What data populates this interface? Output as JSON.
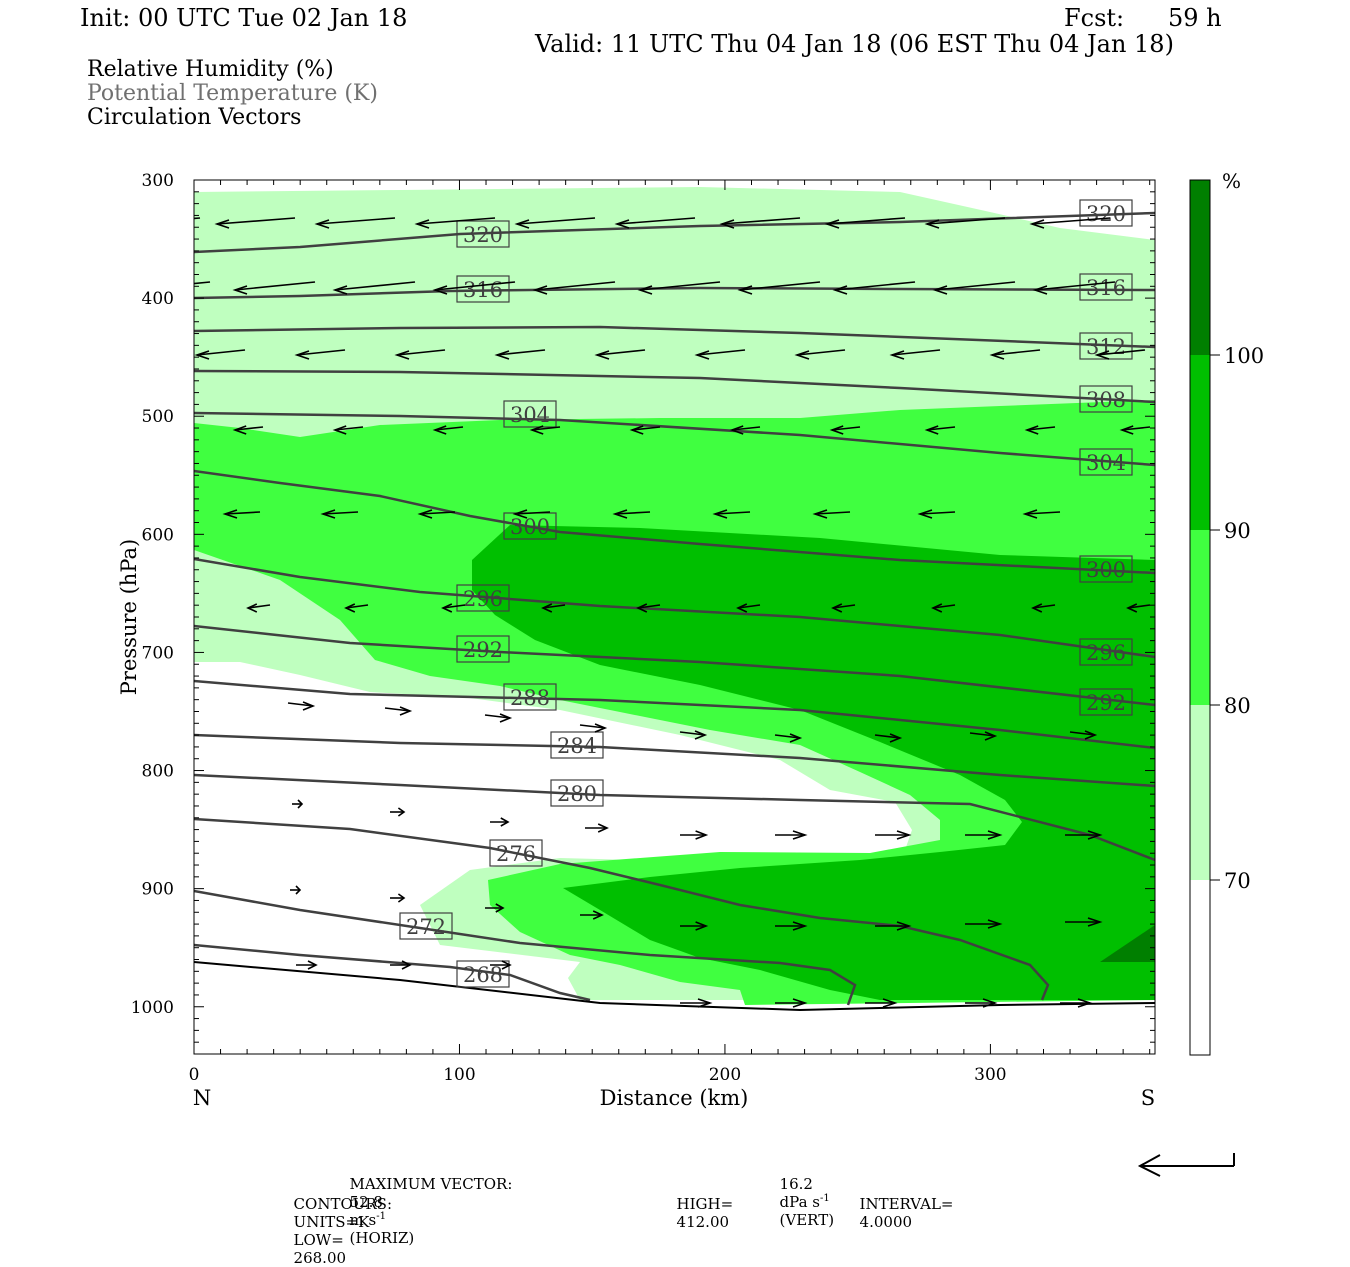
{
  "header": {
    "init": "Init: 00 UTC Tue 02 Jan 18",
    "fcst_label": "Fcst:",
    "fcst_value": "59 h",
    "valid": "Valid: 11 UTC Thu 04 Jan 18 (06 EST Thu 04 Jan 18)"
  },
  "fields": {
    "rh": "Relative Humidity (%)",
    "theta": "Potential Temperature (K)",
    "vectors": "Circulation Vectors"
  },
  "colors": {
    "rh_70_80": "#bfffbf",
    "rh_80_90": "#40ff40",
    "rh_90_100": "#00bf00",
    "rh_100_plus": "#007f00",
    "contour": "#404040"
  },
  "chart_data": {
    "type": "cross-section",
    "xlabel": "Distance (km)",
    "ylabel": "Pressure (hPa)",
    "x_ticks": [
      "0",
      "100",
      "200",
      "300"
    ],
    "y_ticks": [
      "300",
      "400",
      "500",
      "600",
      "700",
      "800",
      "900",
      "1000"
    ],
    "xlim": [
      0,
      362
    ],
    "ylim": [
      1040,
      300
    ],
    "left_end": "N",
    "right_end": "S",
    "colorbar": {
      "unit": "%",
      "levels": [
        "70",
        "80",
        "90",
        "100"
      ]
    },
    "theta_contours": [
      {
        "label": "320",
        "p_left": 340,
        "p_right": 328
      },
      {
        "label": "316",
        "p_left": 399,
        "p_right": 392
      },
      {
        "label": "312",
        "p_left": 430,
        "p_right": 440
      },
      {
        "label": "308",
        "p_left": 461,
        "p_right": 490
      },
      {
        "label": "304",
        "p_left": 497,
        "p_right": 543
      },
      {
        "label": "300",
        "p_left": 547,
        "p_right": 633
      },
      {
        "label": "296",
        "p_left": 620,
        "p_right": 708
      },
      {
        "label": "292",
        "p_left": 677,
        "p_right": 750
      },
      {
        "label": "288",
        "p_left": 723,
        "p_right": 785
      },
      {
        "label": "284",
        "p_left": 766,
        "p_right": 815
      },
      {
        "label": "280",
        "p_left": 804,
        "p_right": 875
      },
      {
        "label": "276",
        "p_left": 841,
        "p_right": 995
      },
      {
        "label": "272",
        "p_left": 903,
        "p_right": 995
      },
      {
        "label": "268",
        "p_left": 945,
        "p_right": 995
      }
    ],
    "max_vector": {
      "label": "MAXIMUM VECTOR:",
      "horiz_value": "52.8",
      "horiz_unit": "m s",
      "horiz_tag": "(HORIZ)",
      "vert_value": "16.2",
      "vert_unit": "dPa s",
      "vert_tag": "(VERT)",
      "exponent": "-1"
    },
    "contour_info": {
      "label": "CONTOURS:",
      "units": "UNITS=K",
      "low": "LOW=",
      "low_value": "268.00",
      "high": "HIGH=",
      "high_value": "412.00",
      "interval": "INTERVAL=",
      "interval_value": "4.0000"
    }
  }
}
